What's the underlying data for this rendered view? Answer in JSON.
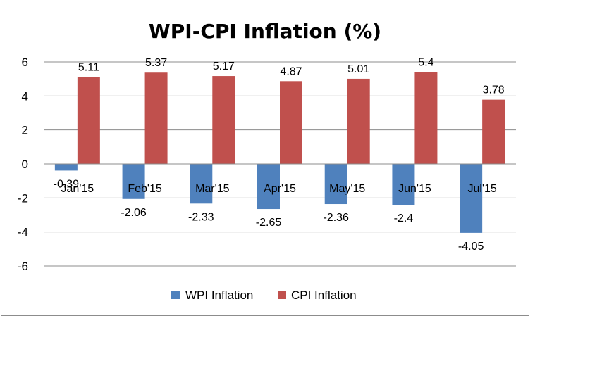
{
  "chart_data": {
    "type": "bar",
    "title": "WPI-CPI Inflation (%)",
    "xlabel": "",
    "ylabel": "",
    "categories": [
      "Jan'15",
      "Feb'15",
      "Mar'15",
      "Apr'15",
      "May'15",
      "Jun'15",
      "Jul'15"
    ],
    "series": [
      {
        "name": "WPI Inflation",
        "color": "#4f81bd",
        "values": [
          -0.39,
          -2.06,
          -2.33,
          -2.65,
          -2.36,
          -2.4,
          -4.05
        ],
        "labels": [
          "-0.39",
          "-2.06",
          "-2.33",
          "-2.65",
          "-2.36",
          "-2.4",
          "-4.05"
        ]
      },
      {
        "name": "CPI Inflation",
        "color": "#c0504d",
        "values": [
          5.11,
          5.37,
          5.17,
          4.87,
          5.01,
          5.4,
          3.78
        ],
        "labels": [
          "5.11",
          "5.37",
          "5.17",
          "4.87",
          "5.01",
          "5.4",
          "3.78"
        ]
      }
    ],
    "ylim": [
      -6,
      6
    ],
    "yticks": [
      6,
      4,
      2,
      0,
      -2,
      -4,
      -6
    ],
    "grid": true,
    "legend": "bottom"
  }
}
